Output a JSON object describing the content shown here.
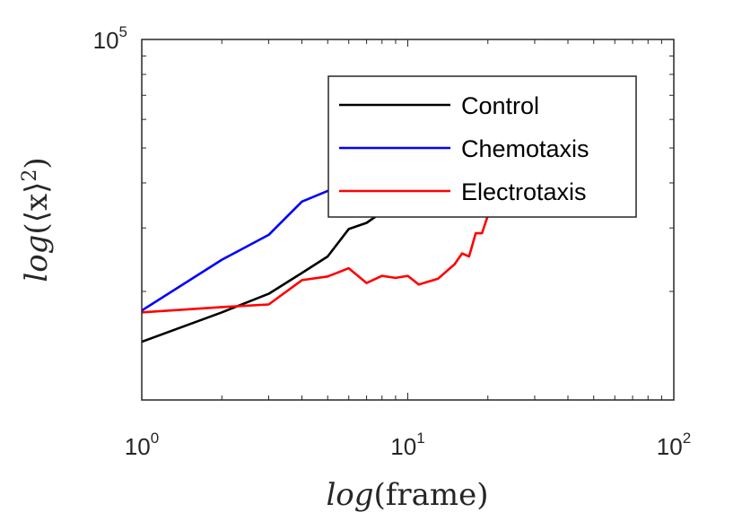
{
  "chart_data": {
    "type": "line",
    "xscale": "log",
    "yscale": "log",
    "xlim": [
      1,
      100
    ],
    "ylim": [
      10000,
      100000
    ],
    "xticks": [
      {
        "value": 1,
        "base": "10",
        "exp": "0"
      },
      {
        "value": 10,
        "base": "10",
        "exp": "1"
      },
      {
        "value": 100,
        "base": "10",
        "exp": "2"
      }
    ],
    "yticks": [
      {
        "value": 100000,
        "base": "10",
        "exp": "5"
      }
    ],
    "xlabel": {
      "fn": "log",
      "arg": "(frame)"
    },
    "ylabel": {
      "fn": "log",
      "arg": "(⟨x⟩",
      "sup": "2",
      "close": ")"
    },
    "legend": {
      "position": "top-right"
    },
    "series": [
      {
        "name": "Control",
        "color": "#000000",
        "x": [
          1,
          2,
          3,
          4,
          5,
          6,
          7,
          8,
          9,
          10,
          11
        ],
        "y": [
          14500,
          17500,
          19700,
          22500,
          25000,
          29800,
          31000,
          33200,
          35300,
          37800,
          39500
        ]
      },
      {
        "name": "Chemotaxis",
        "color": "#0000ff",
        "x": [
          1,
          2,
          3,
          4,
          5,
          6
        ],
        "y": [
          17700,
          24500,
          28700,
          35500,
          38000,
          40000
        ]
      },
      {
        "name": "Electrotaxis",
        "color": "#ff0000",
        "x": [
          1,
          2,
          3,
          4,
          5,
          6,
          7,
          8,
          9,
          10,
          11,
          13,
          15,
          16,
          17,
          18,
          19,
          20,
          21,
          22,
          23
        ],
        "y": [
          17500,
          18100,
          18400,
          21500,
          22000,
          23200,
          21100,
          22100,
          21800,
          22100,
          20900,
          21700,
          23800,
          25500,
          25000,
          29000,
          29000,
          32500,
          33000,
          35500,
          38000
        ]
      }
    ]
  }
}
